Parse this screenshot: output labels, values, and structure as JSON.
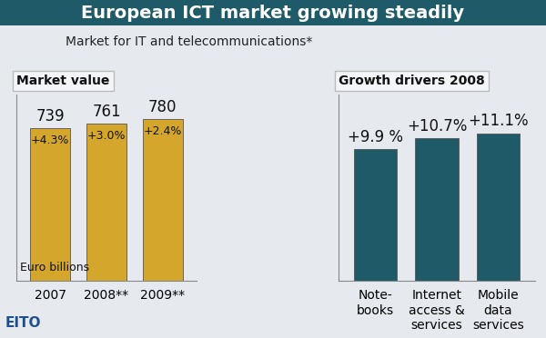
{
  "title": "European ICT market growing steadily",
  "subtitle": "Market for IT and telecommunications*",
  "source": "EITO",
  "chart_data": [
    {
      "type": "bar",
      "title": "Market value",
      "categories": [
        "2007",
        "2008**",
        "2009**"
      ],
      "values": [
        739,
        761,
        780
      ],
      "growth": [
        4.3,
        3.0,
        2.4
      ],
      "growth_labels": [
        "+4.3%",
        "+3.0%",
        "+2.4%"
      ],
      "unit": "Euro billions",
      "color": "#d4a72c",
      "ylim": [
        0,
        900
      ],
      "yticks": [],
      "data_labels": true,
      "tick_labels": "x",
      "grid": false
    },
    {
      "type": "bar",
      "title": "Growth drivers 2008",
      "categories": [
        "Note-\nbooks",
        "Internet\naccess &\nservices",
        "Mobile\ndata\nservices"
      ],
      "values": [
        9.9,
        10.7,
        11.1
      ],
      "value_labels": [
        "+9.9 %",
        "+10.7%",
        "+11.1%"
      ],
      "color": "#1f5a68",
      "ylim": [
        0,
        14
      ],
      "yticks": [],
      "data_labels": true,
      "tick_labels": "x",
      "grid": false
    }
  ]
}
